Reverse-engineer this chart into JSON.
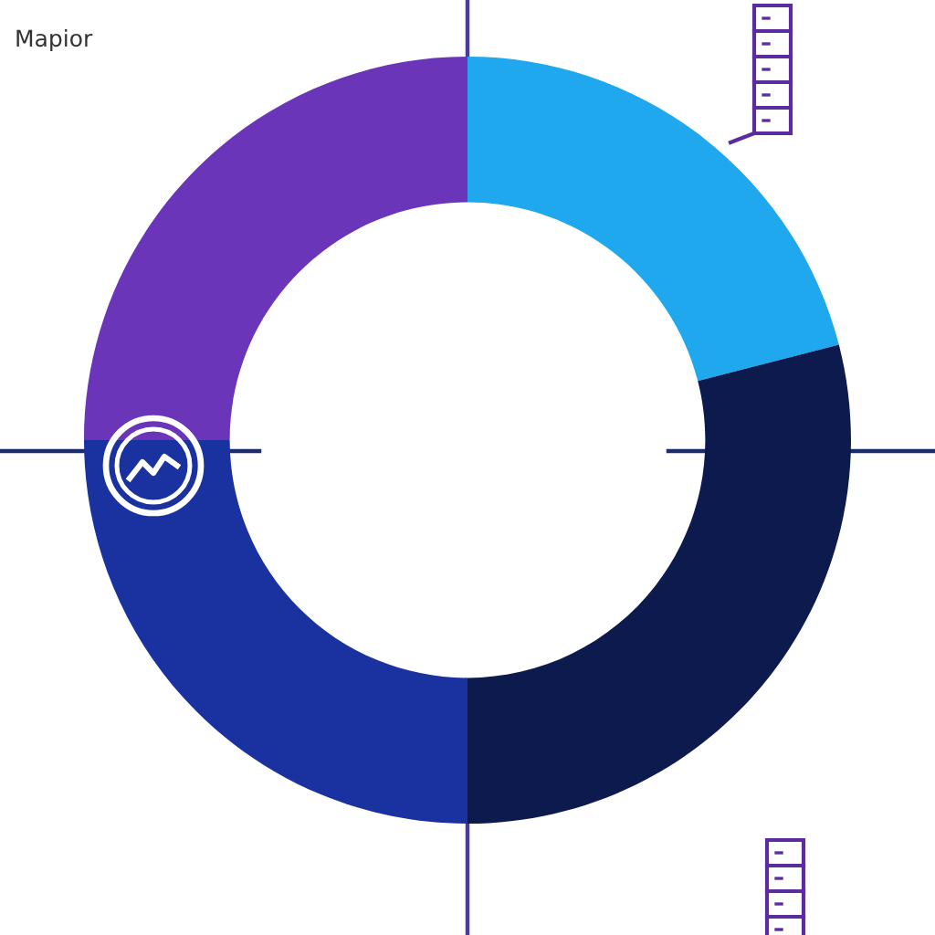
{
  "chart_data": {
    "type": "donut",
    "title": "Mapior",
    "categories": [
      null,
      null,
      null,
      null
    ],
    "values": [
      21,
      29,
      25,
      25
    ],
    "colors": [
      "#1fa8ee",
      "#0c1a4d",
      "#1a32a0",
      "#6a35b8"
    ]
  }
}
